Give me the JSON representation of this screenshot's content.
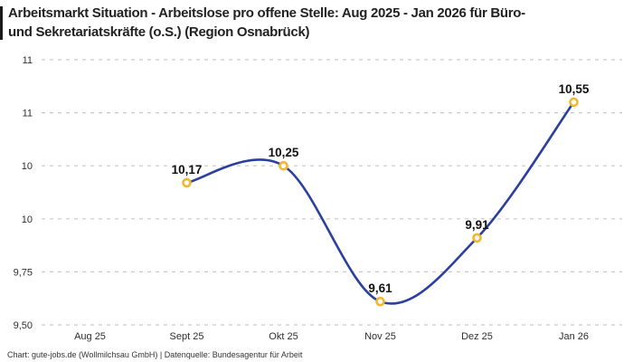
{
  "page": {
    "title_lines": [
      "Arbeitsmarkt Situation - Arbeitslose pro offene Stelle: Aug 2025 - Jan 2026 für Büro-",
      "und Sekretariatskräfte (o.S.) (Region Osnabrück)"
    ],
    "footer": "Chart: gute-jobs.de (Wollmilchsau GmbH) | Datenquelle: Bundesagentur für Arbeit"
  },
  "chart_data": {
    "type": "line",
    "title": "Arbeitsmarkt Situation - Arbeitslose pro offene Stelle: Aug 2025 - Jan 2026 für Büro- und Sekretariatskräfte (o.S.) (Region Osnabrück)",
    "categories": [
      "Aug 25",
      "Sept 25",
      "Okt 25",
      "Nov 25",
      "Dez 25",
      "Jan 26"
    ],
    "series": [
      {
        "name": "Arbeitslose pro offene Stelle",
        "points": [
          {
            "category": "Sept 25",
            "value": 10.17,
            "label": "10,17"
          },
          {
            "category": "Okt 25",
            "value": 10.25,
            "label": "10,25"
          },
          {
            "category": "Nov 25",
            "value": 9.61,
            "label": "9,61"
          },
          {
            "category": "Dez 25",
            "value": 9.91,
            "label": "9,91"
          },
          {
            "category": "Jan 26",
            "value": 10.55,
            "label": "10,55"
          }
        ]
      }
    ],
    "y_gridlines": [
      {
        "value": 10.75,
        "label": "11"
      },
      {
        "value": 10.5,
        "label": "11"
      },
      {
        "value": 10.25,
        "label": "10"
      },
      {
        "value": 10.0,
        "label": "10"
      },
      {
        "value": 9.75,
        "label": "9,75"
      },
      {
        "value": 9.5,
        "label": "9,50"
      }
    ],
    "ylim": [
      9.5,
      10.75
    ],
    "grid": true,
    "legend": "none",
    "colors": {
      "line": "#2b3f9e",
      "marker_ring": "#f5b62f",
      "marker_fill": "#ffffff",
      "gridline": "#c9c9c9",
      "axis_text": "#2e2e2e",
      "point_label": "#111111",
      "title": "#222222",
      "footer": "#333333",
      "background": "#ffffff"
    }
  }
}
